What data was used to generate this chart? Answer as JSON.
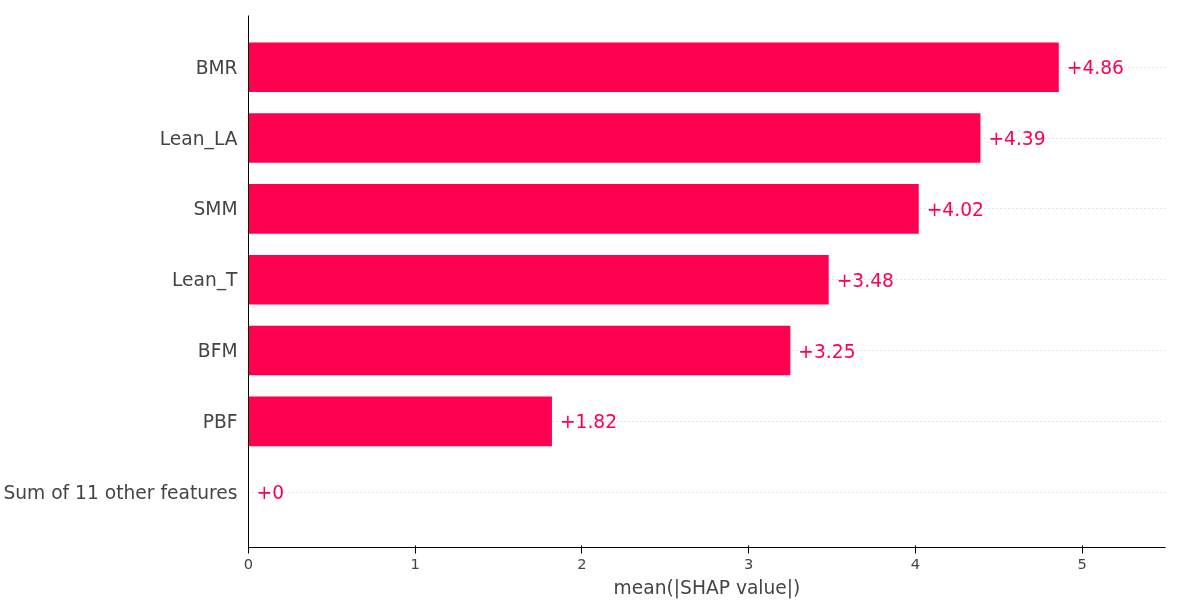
{
  "chart_data": {
    "type": "bar",
    "orientation": "horizontal",
    "categories": [
      "BMR",
      "Lean_LA",
      "SMM",
      "Lean_T",
      "BFM",
      "PBF",
      "Sum of 11 other features"
    ],
    "values": [
      4.86,
      4.39,
      4.02,
      3.48,
      3.25,
      1.82,
      0
    ],
    "value_labels": [
      "+4.86",
      "+4.39",
      "+4.02",
      "+3.48",
      "+3.25",
      "+1.82",
      "+0"
    ],
    "color": "#ff0051",
    "xlabel": "mean(|SHAP value|)",
    "xlim": [
      0,
      5.5
    ],
    "xticks": [
      0,
      1,
      2,
      3,
      4,
      5
    ],
    "grid": "y"
  }
}
